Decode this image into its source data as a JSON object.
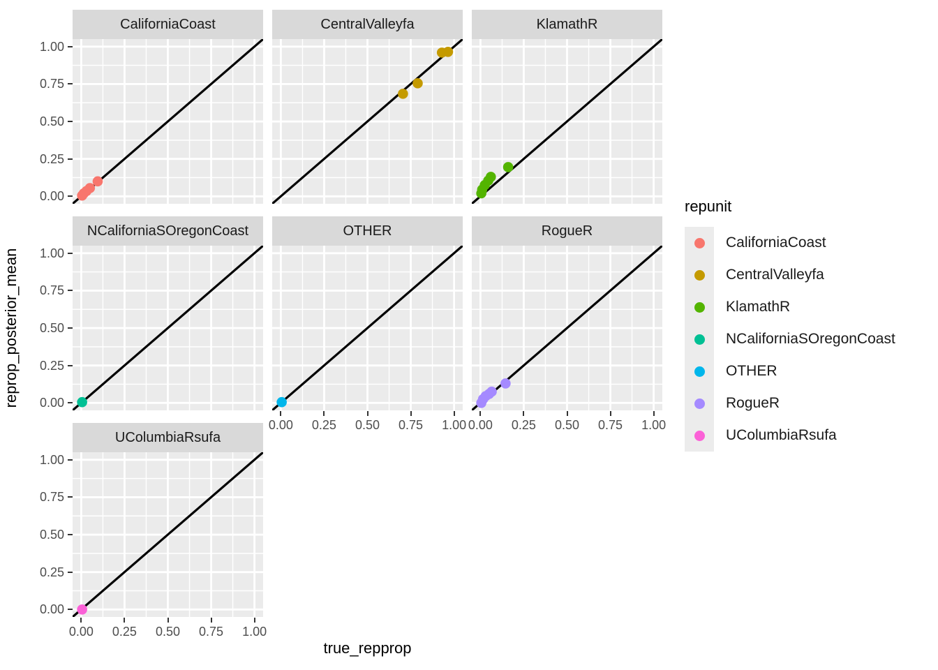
{
  "chart_data": {
    "type": "scatter",
    "title": "",
    "xlabel": "true_repprop",
    "ylabel": "reprop_posterior_mean",
    "legend_title": "repunit",
    "legend_position": "right",
    "grid": "on",
    "xlim": [
      -0.05,
      1.05
    ],
    "ylim": [
      -0.05,
      1.05
    ],
    "x_ticks": [
      0,
      0.25,
      0.5,
      0.75,
      1.0
    ],
    "x_tick_labels": [
      "0.00",
      "0.25",
      "0.50",
      "0.75",
      "1.00"
    ],
    "y_ticks": [
      0,
      0.25,
      0.5,
      0.75,
      1.0
    ],
    "y_tick_labels": [
      "0.00",
      "0.25",
      "0.50",
      "0.75",
      "1.00"
    ],
    "minor_ticks": [
      0.125,
      0.375,
      0.625,
      0.875
    ],
    "abline": {
      "slope": 1,
      "intercept": 0,
      "color": "#000000",
      "width": 3.2
    },
    "facets": [
      {
        "name": "CaliforniaCoast",
        "color": "#F8766D",
        "row": 0,
        "col": 0,
        "points": [
          [
            0.005,
            0.005
          ],
          [
            0.015,
            0.02
          ],
          [
            0.03,
            0.035
          ],
          [
            0.05,
            0.055
          ],
          [
            0.095,
            0.1
          ]
        ]
      },
      {
        "name": "CentralValleyfa",
        "color": "#C49A00",
        "row": 0,
        "col": 1,
        "points": [
          [
            0.705,
            0.685
          ],
          [
            0.79,
            0.755
          ],
          [
            0.93,
            0.96
          ],
          [
            0.965,
            0.965
          ]
        ]
      },
      {
        "name": "KlamathR",
        "color": "#53B400",
        "row": 0,
        "col": 2,
        "points": [
          [
            0.005,
            0.02
          ],
          [
            0.01,
            0.045
          ],
          [
            0.025,
            0.075
          ],
          [
            0.045,
            0.105
          ],
          [
            0.06,
            0.13
          ],
          [
            0.16,
            0.195
          ]
        ]
      },
      {
        "name": "NCaliforniaSOregonCoast",
        "color": "#00C094",
        "row": 1,
        "col": 0,
        "points": [
          [
            0.005,
            0.005
          ]
        ]
      },
      {
        "name": "OTHER",
        "color": "#00B6EB",
        "row": 1,
        "col": 1,
        "points": [
          [
            0.005,
            0.005
          ]
        ]
      },
      {
        "name": "RogueR",
        "color": "#A58AFF",
        "row": 1,
        "col": 2,
        "points": [
          [
            0.005,
            0.0
          ],
          [
            0.015,
            0.025
          ],
          [
            0.03,
            0.045
          ],
          [
            0.05,
            0.06
          ],
          [
            0.065,
            0.075
          ],
          [
            0.145,
            0.13
          ]
        ]
      },
      {
        "name": "UColumbiaRsufa",
        "color": "#FB61D7",
        "row": 2,
        "col": 0,
        "points": [
          [
            0.005,
            0.0
          ]
        ]
      }
    ],
    "legend_entries": [
      {
        "label": "CaliforniaCoast",
        "color": "#F8766D"
      },
      {
        "label": "CentralValleyfa",
        "color": "#C49A00"
      },
      {
        "label": "KlamathR",
        "color": "#53B400"
      },
      {
        "label": "NCaliforniaSOregonCoast",
        "color": "#00C094"
      },
      {
        "label": "OTHER",
        "color": "#00B6EB"
      },
      {
        "label": "RogueR",
        "color": "#A58AFF"
      },
      {
        "label": "UColumbiaRsufa",
        "color": "#FB61D7"
      }
    ],
    "theme_colors": {
      "panel_background": "#EBEBEB",
      "strip_background": "#D9D9D9",
      "gridline": "#FFFFFF",
      "axis_text": "#4D4D4D",
      "tick_mark": "#333333",
      "legend_key_background": "#ECECEC",
      "figure_background": "#FFFFFF"
    },
    "point_radius_px": 7.3
  }
}
